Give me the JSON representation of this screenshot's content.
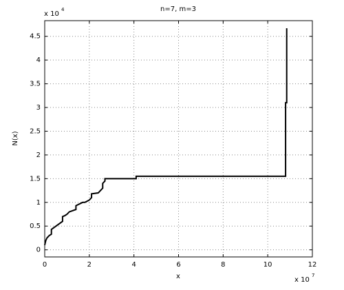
{
  "chart_data": {
    "type": "line",
    "title": "n=7, m=3",
    "x_label": "x",
    "y_label": "N(x)",
    "x_multiplier": {
      "base": "x 10",
      "exponent": "7"
    },
    "y_multiplier": {
      "base": "x 10",
      "exponent": "4"
    },
    "x": [
      0,
      0.05,
      0.1,
      0.2,
      0.3,
      0.3,
      0.8,
      0.8,
      0.9,
      1.0,
      1.1,
      1.4,
      1.4,
      1.7,
      1.8,
      2.0,
      2.1,
      2.1,
      2.4,
      2.5,
      2.6,
      2.6,
      2.7,
      2.7,
      4.1,
      4.1,
      10.8,
      10.8,
      10.85,
      10.85
    ],
    "series": [
      {
        "color": "#000000",
        "values": [
          0.1,
          0.2,
          0.25,
          0.3,
          0.33,
          0.43,
          0.6,
          0.7,
          0.72,
          0.75,
          0.8,
          0.85,
          0.93,
          1.0,
          1.0,
          1.05,
          1.1,
          1.18,
          1.2,
          1.25,
          1.3,
          1.4,
          1.45,
          1.5,
          1.5,
          1.55,
          1.55,
          3.1,
          3.1,
          4.67
        ]
      }
    ],
    "xlim": [
      0,
      12
    ],
    "xticks": [
      0,
      2,
      4,
      6,
      8,
      10,
      12
    ],
    "ylim": [
      -0.15,
      4.83
    ],
    "yticks": [
      0,
      0.5,
      1,
      1.5,
      2,
      2.5,
      3,
      3.5,
      4,
      4.5
    ],
    "grid": true
  }
}
